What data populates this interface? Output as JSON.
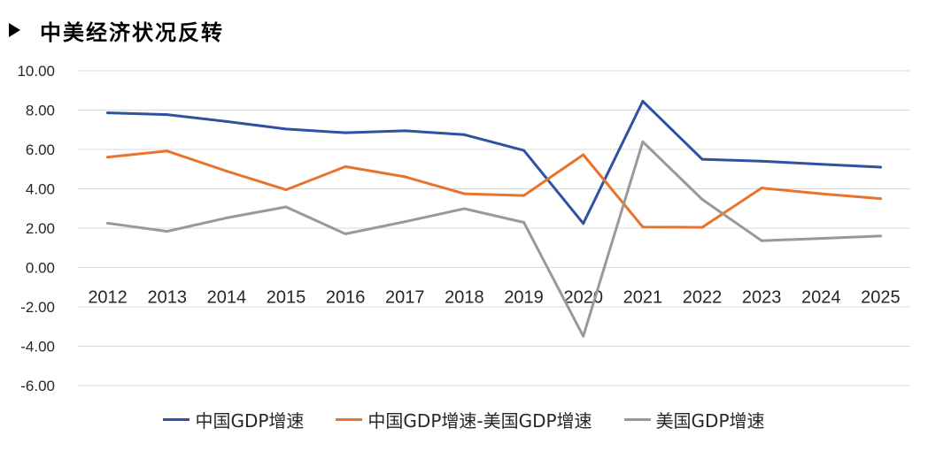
{
  "title": "中美经济状况反转",
  "chart_data": {
    "type": "line",
    "x": [
      "2012",
      "2013",
      "2014",
      "2015",
      "2016",
      "2017",
      "2018",
      "2019",
      "2020",
      "2021",
      "2022",
      "2023",
      "2024",
      "2025"
    ],
    "ylim": [
      -6,
      10
    ],
    "yticks": [
      "10.00",
      "8.00",
      "6.00",
      "4.00",
      "2.00",
      "0.00",
      "-2.00",
      "-4.00",
      "-6.00"
    ],
    "grid": true,
    "legend_position": "bottom",
    "series": [
      {
        "name": "中国GDP增速",
        "color": "#2F52A0",
        "values": [
          7.86,
          7.77,
          7.42,
          7.04,
          6.85,
          6.95,
          6.75,
          5.95,
          2.24,
          8.45,
          5.5,
          5.4,
          5.25,
          5.1
        ]
      },
      {
        "name": "中国GDP增速-美国GDP增速",
        "color": "#E8732A",
        "values": [
          5.61,
          5.92,
          4.9,
          3.95,
          5.13,
          4.61,
          3.75,
          3.66,
          5.73,
          2.06,
          2.04,
          4.04,
          3.75,
          3.5
        ]
      },
      {
        "name": "美国GDP增速",
        "color": "#999999",
        "values": [
          2.25,
          1.84,
          2.52,
          3.08,
          1.71,
          2.33,
          2.99,
          2.29,
          -3.49,
          6.39,
          3.46,
          1.36,
          1.48,
          1.6
        ]
      }
    ]
  }
}
